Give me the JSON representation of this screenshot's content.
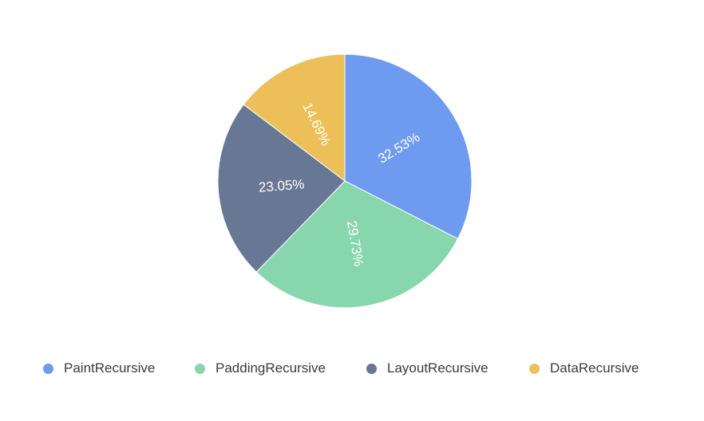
{
  "chart_data": {
    "type": "pie",
    "title": "",
    "slices": [
      {
        "name": "PaintRecursive",
        "value": 32.53,
        "label": "32.53%",
        "color": "#6e9bef"
      },
      {
        "name": "PaddingRecursive",
        "value": 29.73,
        "label": "29.73%",
        "color": "#87d6ad"
      },
      {
        "name": "LayoutRecursive",
        "value": 23.05,
        "label": "23.05%",
        "color": "#677794"
      },
      {
        "name": "DataRecursive",
        "value": 14.69,
        "label": "14.69%",
        "color": "#ecbf58"
      }
    ],
    "legend_position": "bottom",
    "start_angle": "top",
    "direction": "clockwise"
  }
}
